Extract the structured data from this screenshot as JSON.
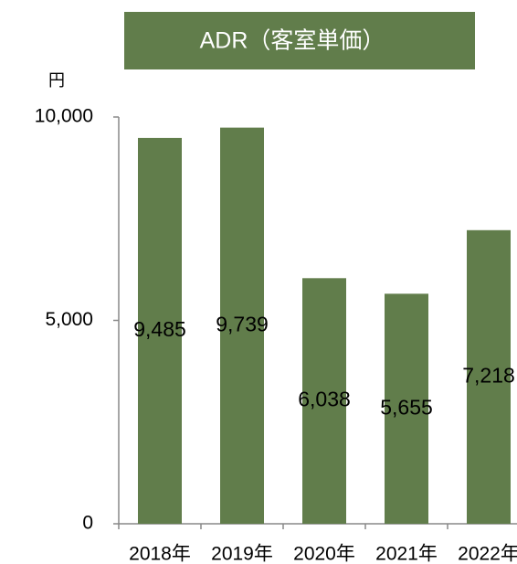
{
  "chart_data": {
    "type": "bar",
    "title": "ADR（客室単価）",
    "y_label": "円",
    "categories": [
      "2018年",
      "2019年",
      "2020年",
      "2021年",
      "2022年"
    ],
    "values": [
      9485,
      9739,
      6038,
      5655,
      7218
    ],
    "value_labels": [
      "9,485",
      "9,739",
      "6,038",
      "5,655",
      "7,218"
    ],
    "color": "#617d4b",
    "ylim": [
      0,
      10000
    ],
    "yticks": [
      0,
      {
        "value": 5000,
        "label": "5,000"
      },
      {
        "value": 10000,
        "label": "10,000"
      }
    ],
    "grid": false
  }
}
